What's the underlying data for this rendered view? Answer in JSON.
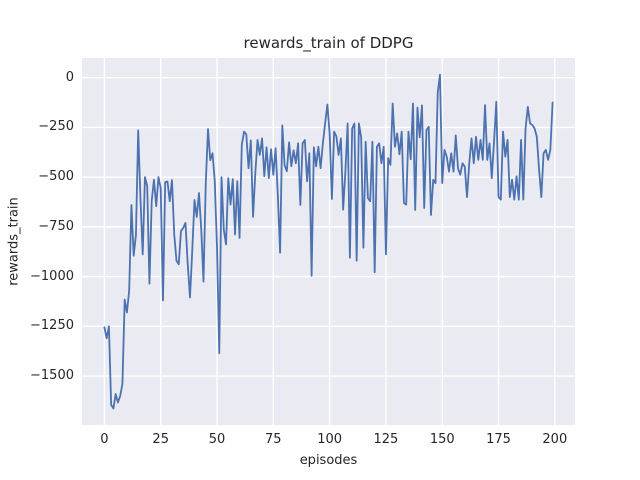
{
  "figure": {
    "title": "rewards_train of DDPG"
  },
  "chart_data": {
    "type": "line",
    "title": "rewards_train of DDPG",
    "xlabel": "episodes",
    "ylabel": "rewards_train",
    "x_ticks": [
      0,
      25,
      50,
      75,
      100,
      125,
      150,
      175,
      200
    ],
    "x_tick_labels": [
      "0",
      "25",
      "50",
      "75",
      "100",
      "125",
      "150",
      "175",
      "200"
    ],
    "y_ticks": [
      0,
      -250,
      -500,
      -750,
      -1000,
      -1250,
      -1500
    ],
    "y_tick_labels": [
      "0",
      "−250",
      "−500",
      "−750",
      "−1000",
      "−1250",
      "−1500"
    ],
    "xlim": [
      -9.95,
      208.95
    ],
    "ylim": [
      -1746,
      99
    ],
    "grid": true,
    "legend_position": "none",
    "style": "seaborn-darkgrid",
    "axes_bg_color": "#eaeaf2",
    "grid_color": "#ffffff",
    "line_color": "#4c72b0",
    "text_color": "#262626",
    "series": [
      {
        "name": "rewards_train",
        "x_start": 0,
        "x_step": 1,
        "values": [
          -1255,
          -1310,
          -1250,
          -1645,
          -1663,
          -1590,
          -1633,
          -1600,
          -1540,
          -1115,
          -1180,
          -1070,
          -640,
          -895,
          -790,
          -265,
          -605,
          -888,
          -500,
          -545,
          -1035,
          -620,
          -513,
          -646,
          -500,
          -555,
          -1120,
          -525,
          -522,
          -621,
          -515,
          -788,
          -920,
          -938,
          -771,
          -755,
          -730,
          -938,
          -1105,
          -871,
          -615,
          -700,
          -580,
          -763,
          -1025,
          -530,
          -258,
          -415,
          -380,
          -520,
          -855,
          -1385,
          -500,
          -763,
          -838,
          -505,
          -638,
          -510,
          -788,
          -521,
          -805,
          -338,
          -271,
          -285,
          -455,
          -315,
          -700,
          -480,
          -313,
          -388,
          -305,
          -495,
          -350,
          -505,
          -360,
          -488,
          -355,
          -590,
          -880,
          -240,
          -440,
          -470,
          -325,
          -445,
          -365,
          -430,
          -330,
          -640,
          -330,
          -313,
          -521,
          -380,
          -996,
          -350,
          -446,
          -347,
          -455,
          -330,
          -230,
          -135,
          -280,
          -610,
          -271,
          -295,
          -388,
          -305,
          -663,
          -470,
          -230,
          -905,
          -255,
          -230,
          -920,
          -230,
          -300,
          -855,
          -322,
          -605,
          -621,
          -322,
          -978,
          -347,
          -330,
          -430,
          -347,
          -888,
          -405,
          -438,
          -130,
          -347,
          -280,
          -385,
          -271,
          -630,
          -638,
          -271,
          -410,
          -130,
          -665,
          -150,
          -300,
          -139,
          -655,
          -263,
          -247,
          -690,
          -513,
          -530,
          -75,
          15,
          -530,
          -363,
          -397,
          -472,
          -380,
          -472,
          -290,
          -455,
          -488,
          -430,
          -447,
          -600,
          -430,
          -305,
          -430,
          -297,
          -413,
          -313,
          -413,
          -138,
          -413,
          -330,
          -505,
          -322,
          -122,
          -600,
          -613,
          -271,
          -397,
          -313,
          -600,
          -513,
          -613,
          -496,
          -613,
          -313,
          -613,
          -255,
          -147,
          -230,
          -238,
          -255,
          -297,
          -463,
          -600,
          -380,
          -363,
          -413,
          -363,
          -125
        ]
      }
    ]
  }
}
